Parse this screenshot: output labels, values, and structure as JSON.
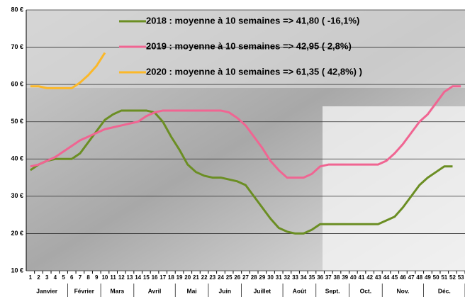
{
  "chart_data": {
    "type": "line",
    "x": [
      1,
      2,
      3,
      4,
      5,
      6,
      7,
      8,
      9,
      10,
      11,
      12,
      13,
      14,
      15,
      16,
      17,
      18,
      19,
      20,
      21,
      22,
      23,
      24,
      25,
      26,
      27,
      28,
      29,
      30,
      31,
      32,
      33,
      34,
      35,
      36,
      37,
      38,
      39,
      40,
      41,
      42,
      43,
      44,
      45,
      46,
      47,
      48,
      49,
      50,
      51,
      52,
      53
    ],
    "xlim": [
      0.5,
      53.5
    ],
    "ylim": [
      10,
      80
    ],
    "yticks": [
      {
        "value": 10,
        "label": "10 €"
      },
      {
        "value": 20,
        "label": "20 €"
      },
      {
        "value": 30,
        "label": "30 €"
      },
      {
        "value": 40,
        "label": "40 €"
      },
      {
        "value": 50,
        "label": "50 €"
      },
      {
        "value": 60,
        "label": "60 €"
      },
      {
        "value": 70,
        "label": "70 €"
      },
      {
        "value": 80,
        "label": "80 €"
      }
    ],
    "grid": true,
    "months": [
      {
        "label": "Janvier",
        "first": 1,
        "last": 5
      },
      {
        "label": "Février",
        "first": 6,
        "last": 9
      },
      {
        "label": "Mars",
        "first": 10,
        "last": 13
      },
      {
        "label": "Avril",
        "first": 14,
        "last": 18
      },
      {
        "label": "Mai",
        "first": 19,
        "last": 22
      },
      {
        "label": "Juin",
        "first": 23,
        "last": 26
      },
      {
        "label": "Juillet",
        "first": 27,
        "last": 31
      },
      {
        "label": "Août",
        "first": 32,
        "last": 35
      },
      {
        "label": "Sept.",
        "first": 36,
        "last": 39
      },
      {
        "label": "Oct.",
        "first": 40,
        "last": 43
      },
      {
        "label": "Nov.",
        "first": 44,
        "last": 48
      },
      {
        "label": "Déc.",
        "first": 49,
        "last": 53
      }
    ],
    "series": [
      {
        "name": "2018 : moyenne à  10 semaines => 41,80 ( -16,1%)",
        "color": "#6b8e23",
        "values": [
          37,
          38.5,
          39.5,
          40,
          40,
          40,
          41.5,
          44.5,
          47.5,
          50.5,
          52,
          53,
          53,
          53,
          53,
          52.5,
          50,
          46,
          42.5,
          38.5,
          36.5,
          35.5,
          35,
          35,
          34.5,
          34,
          33,
          30,
          27,
          24,
          21.5,
          20.5,
          20,
          20,
          21,
          22.5,
          22.5,
          22.5,
          22.5,
          22.5,
          22.5,
          22.5,
          22.5,
          23.5,
          24.5,
          27,
          30,
          33,
          35,
          36.5,
          38,
          38,
          null
        ]
      },
      {
        "name": "2019 : moyenne à  10 semaines => 42,95 ( 2,8%)",
        "color": "#f06592",
        "values": [
          38,
          38.5,
          39.5,
          40.5,
          42,
          43.5,
          45,
          46,
          47,
          48,
          48.5,
          49,
          49.5,
          50,
          51.5,
          52.5,
          53,
          53,
          53,
          53,
          53,
          53,
          53,
          53,
          52.5,
          51,
          49,
          46,
          43,
          39.5,
          37,
          35,
          35,
          35,
          36,
          38,
          38.5,
          38.5,
          38.5,
          38.5,
          38.5,
          38.5,
          38.5,
          39.5,
          41.5,
          44,
          47,
          50,
          52,
          55,
          58,
          59.5,
          59.5
        ]
      },
      {
        "name": "2020 : moyenne à  10 semaines => 61,35 ( 42,8%) )",
        "color": "#fbb829",
        "values": [
          59.5,
          59.5,
          59,
          59,
          59,
          59,
          60.5,
          62.5,
          65,
          68.5,
          null,
          null,
          null,
          null,
          null,
          null,
          null,
          null,
          null,
          null,
          null,
          null,
          null,
          null,
          null,
          null,
          null,
          null,
          null,
          null,
          null,
          null,
          null,
          null,
          null,
          null,
          null,
          null,
          null,
          null,
          null,
          null,
          null,
          null,
          null,
          null,
          null,
          null,
          null,
          null,
          null,
          null,
          null
        ]
      }
    ]
  }
}
